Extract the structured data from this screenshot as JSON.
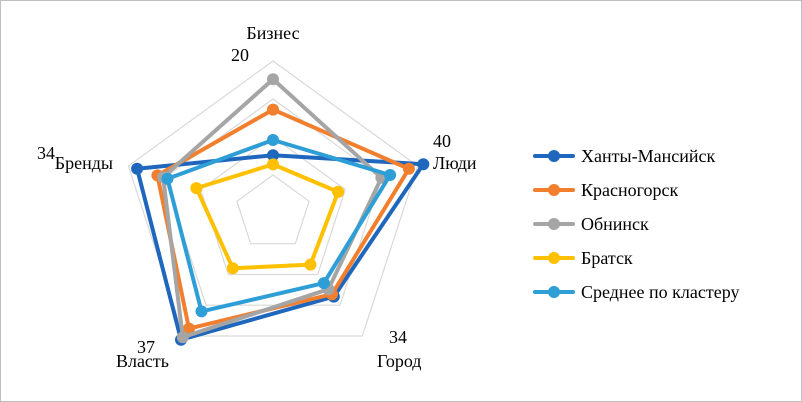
{
  "chart_data": {
    "type": "radar",
    "axes": [
      "Бизнес",
      "Люди",
      "Город",
      "Власть",
      "Бренды"
    ],
    "axis_max": [
      20,
      40,
      34,
      37,
      34
    ],
    "gridlines": 4,
    "grid": true,
    "legend": "right",
    "series": [
      {
        "name": "Ханты-Мансийск",
        "color": "#1f66bd",
        "values": [
          0.38,
          1.04,
          0.68,
          1.03,
          0.94
        ]
      },
      {
        "name": "Красногорск",
        "color": "#f17f2e",
        "values": [
          0.68,
          0.94,
          0.66,
          0.94,
          0.8
        ]
      },
      {
        "name": "Обнинск",
        "color": "#a5a5a5",
        "values": [
          0.88,
          0.75,
          0.62,
          1.01,
          0.76
        ]
      },
      {
        "name": "Братск",
        "color": "#ffc000",
        "values": [
          0.32,
          0.45,
          0.42,
          0.45,
          0.53
        ]
      },
      {
        "name": "Среднее по кластеру",
        "color": "#2e9ed6",
        "values": [
          0.48,
          0.81,
          0.57,
          0.8,
          0.73
        ]
      }
    ]
  }
}
